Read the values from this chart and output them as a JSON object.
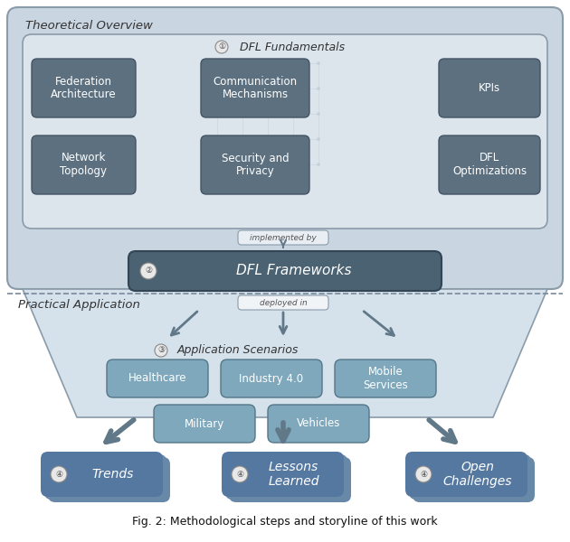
{
  "bg_color": "#ffffff",
  "theoretical_bg": "#c9d5e0",
  "theoretical_border": "#8a9baa",
  "fundamentals_bg": "#dce4ec",
  "fundamentals_border": "#8a9baa",
  "dark_box_color": "#5c7080",
  "dark_box_border": "#445566",
  "dark_box_text": "#ffffff",
  "framework_box_color": "#4a6272",
  "framework_border": "#334455",
  "framework_text": "#ffffff",
  "practical_bg": "#d5e2ec",
  "practical_border": "#8a9baa",
  "deployed_box_bg": "#f0f4f7",
  "deployed_box_border": "#8a9baa",
  "impl_box_bg": "#e8eef3",
  "impl_box_border": "#8a9baa",
  "app_box_color": "#7fa8bc",
  "app_box_border": "#557788",
  "app_box_text": "#ffffff",
  "bottom_box_color": "#5578a0",
  "bottom_box_shadow": "#6888a8",
  "bottom_box_text": "#ffffff",
  "arrow_color": "#607888",
  "label_circle_bg": "#e8e8e8",
  "label_circle_border": "#888888",
  "label_text_color": "#444444",
  "dashed_line_color": "#778899",
  "circuit_color": "#b8c8d4",
  "theoretical_label": "Theoretical Overview",
  "practical_label": "Practical Application",
  "impl_label": "implemented by",
  "deployed_label": "deployed in",
  "fundamentals_boxes_r1": [
    "Federation\nArchitecture",
    "Communication\nMechanisms",
    "KPIs"
  ],
  "fundamentals_boxes_r2": [
    "Network\nTopology",
    "Security and\nPrivacy",
    "DFL\nOptimizations"
  ],
  "app_boxes_r1": [
    "Healthcare",
    "Industry 4.0",
    "Mobile\nServices"
  ],
  "app_boxes_r2": [
    "Military",
    "Vehicles"
  ],
  "bottom_labels": [
    "Trends",
    "Lessons\nLearned",
    "Open\nChallenges"
  ],
  "caption": "Fig. 2: Methodological steps and storyline of this work"
}
